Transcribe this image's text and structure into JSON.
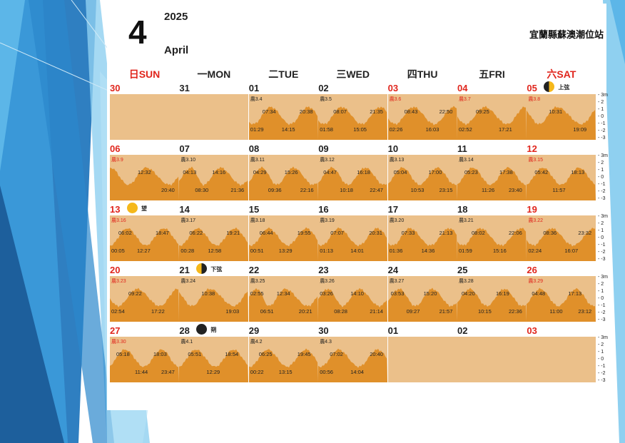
{
  "header": {
    "month_num": "4",
    "year": "2025",
    "month_name": "April",
    "station": "宜蘭縣蘇澳潮位站"
  },
  "weekdays": [
    {
      "label": "日SUN",
      "red": true
    },
    {
      "label": "一MON",
      "red": false
    },
    {
      "label": "二TUE",
      "red": false
    },
    {
      "label": "三WED",
      "red": false
    },
    {
      "label": "四THU",
      "red": false
    },
    {
      "label": "五FRI",
      "red": false
    },
    {
      "label": "六SAT",
      "red": true
    }
  ],
  "scale_labels": [
    "3m",
    "2",
    "1",
    "0",
    "-1",
    "-2",
    "-3"
  ],
  "colors": {
    "chart_bg": "#ebc08a",
    "tide_fill": "#e0902a",
    "holiday": "#e0261d"
  },
  "weeks": [
    [
      {
        "day": "30",
        "red": true,
        "lunar": "",
        "highs": [],
        "lows": [],
        "filled": true,
        "empty": true
      },
      {
        "day": "31",
        "red": false,
        "lunar": "",
        "highs": [],
        "lows": [],
        "filled": true,
        "empty": true
      },
      {
        "day": "01",
        "red": false,
        "lunar": "農3.4",
        "highs": [
          "07:34",
          "20:38"
        ],
        "lows": [
          "01:29",
          "14:15"
        ]
      },
      {
        "day": "02",
        "red": false,
        "lunar": "農3.5",
        "highs": [
          "08:07",
          "21:35"
        ],
        "lows": [
          "01:58",
          "15:05"
        ]
      },
      {
        "day": "03",
        "red": true,
        "lunar": "農3.6",
        "lunar_red": true,
        "highs": [
          "08:43",
          "22:50"
        ],
        "lows": [
          "02:26",
          "16:03"
        ]
      },
      {
        "day": "04",
        "red": true,
        "lunar": "農3.7",
        "lunar_red": true,
        "highs": [
          "09:25"
        ],
        "lows": [
          "02:52",
          "17:21"
        ]
      },
      {
        "day": "05",
        "red": true,
        "lunar": "農3.8",
        "lunar_red": true,
        "highs": [
          "10:31"
        ],
        "lows": [
          "19:09"
        ],
        "moon": "first",
        "phase": "上弦"
      }
    ],
    [
      {
        "day": "06",
        "red": true,
        "lunar": "農3.9",
        "lunar_red": true,
        "highs": [
          "12:32"
        ],
        "lows": [
          "20:40"
        ]
      },
      {
        "day": "07",
        "red": false,
        "lunar": "農3.10",
        "highs": [
          "04:13",
          "14:16"
        ],
        "lows": [
          "08:30",
          "21:36"
        ]
      },
      {
        "day": "08",
        "red": false,
        "lunar": "農3.11",
        "highs": [
          "04:29",
          "15:26"
        ],
        "lows": [
          "09:36",
          "22:16"
        ]
      },
      {
        "day": "09",
        "red": false,
        "lunar": "農3.12",
        "highs": [
          "04:47",
          "16:18"
        ],
        "lows": [
          "10:18",
          "22:47"
        ]
      },
      {
        "day": "10",
        "red": false,
        "lunar": "農3.13",
        "highs": [
          "05:04",
          "17:00"
        ],
        "lows": [
          "10:53",
          "23:15"
        ]
      },
      {
        "day": "11",
        "red": false,
        "lunar": "農3.14",
        "highs": [
          "05:23",
          "17:38"
        ],
        "lows": [
          "11:26",
          "23:40"
        ]
      },
      {
        "day": "12",
        "red": true,
        "lunar": "農3.15",
        "lunar_red": true,
        "highs": [
          "05:42",
          "18:13"
        ],
        "lows": [
          "11:57"
        ]
      }
    ],
    [
      {
        "day": "13",
        "red": true,
        "lunar": "農3.16",
        "lunar_red": true,
        "highs": [
          "06:02",
          "18:47"
        ],
        "lows": [
          "00:05",
          "12:27"
        ],
        "moon": "full",
        "phase": "望"
      },
      {
        "day": "14",
        "red": false,
        "lunar": "農3.17",
        "highs": [
          "06:22",
          "19:21"
        ],
        "lows": [
          "00:28",
          "12:58"
        ]
      },
      {
        "day": "15",
        "red": false,
        "lunar": "農3.18",
        "highs": [
          "06:44",
          "19:55"
        ],
        "lows": [
          "00:51",
          "13:29"
        ]
      },
      {
        "day": "16",
        "red": false,
        "lunar": "農3.19",
        "highs": [
          "07:07",
          "20:31"
        ],
        "lows": [
          "01:13",
          "14:01"
        ]
      },
      {
        "day": "17",
        "red": false,
        "lunar": "農3.20",
        "highs": [
          "07:33",
          "21:13"
        ],
        "lows": [
          "01:36",
          "14:36"
        ]
      },
      {
        "day": "18",
        "red": false,
        "lunar": "農3.21",
        "highs": [
          "08:02",
          "22:06"
        ],
        "lows": [
          "01:59",
          "15:16"
        ]
      },
      {
        "day": "19",
        "red": true,
        "lunar": "農3.22",
        "lunar_red": true,
        "highs": [
          "08:36",
          "23:32"
        ],
        "lows": [
          "02:24",
          "16:07"
        ]
      }
    ],
    [
      {
        "day": "20",
        "red": true,
        "lunar": "農3.23",
        "lunar_red": true,
        "highs": [
          "09:22"
        ],
        "lows": [
          "02:54",
          "17:22"
        ]
      },
      {
        "day": "21",
        "red": false,
        "lunar": "農3.24",
        "highs": [
          "10:38"
        ],
        "lows": [
          "19:03"
        ],
        "moon": "last",
        "phase": "下弦"
      },
      {
        "day": "22",
        "red": false,
        "lunar": "農3.25",
        "highs": [
          "02:55",
          "12:34"
        ],
        "lows": [
          "06:51",
          "20:21"
        ]
      },
      {
        "day": "23",
        "red": false,
        "lunar": "農3.26",
        "highs": [
          "03:26",
          "14:10"
        ],
        "lows": [
          "08:28",
          "21:14"
        ]
      },
      {
        "day": "24",
        "red": false,
        "lunar": "農3.27",
        "highs": [
          "03:53",
          "15:20"
        ],
        "lows": [
          "09:27",
          "21:57"
        ]
      },
      {
        "day": "25",
        "red": false,
        "lunar": "農3.28",
        "highs": [
          "04:20",
          "16:19"
        ],
        "lows": [
          "10:15",
          "22:36"
        ]
      },
      {
        "day": "26",
        "red": true,
        "lunar": "農3.29",
        "lunar_red": true,
        "highs": [
          "04:48",
          "17:13"
        ],
        "lows": [
          "11:00",
          "23:12"
        ]
      }
    ],
    [
      {
        "day": "27",
        "red": true,
        "lunar": "農3.30",
        "lunar_red": true,
        "highs": [
          "05:18",
          "18:03"
        ],
        "lows": [
          "11:44",
          "23:47"
        ]
      },
      {
        "day": "28",
        "red": false,
        "lunar": "農4.1",
        "highs": [
          "05:51",
          "18:54"
        ],
        "lows": [
          "12:29"
        ],
        "moon": "new",
        "phase": "朔"
      },
      {
        "day": "29",
        "red": false,
        "lunar": "農4.2",
        "highs": [
          "06:25",
          "19:45"
        ],
        "lows": [
          "00:22",
          "13:15"
        ]
      },
      {
        "day": "30",
        "red": false,
        "lunar": "農4.3",
        "highs": [
          "07:02",
          "20:40"
        ],
        "lows": [
          "00:56",
          "14:04"
        ]
      },
      {
        "day": "01",
        "red": false,
        "lunar": "",
        "highs": [],
        "lows": [],
        "empty": true
      },
      {
        "day": "02",
        "red": false,
        "lunar": "",
        "highs": [],
        "lows": [],
        "empty": true
      },
      {
        "day": "03",
        "red": true,
        "lunar": "",
        "highs": [],
        "lows": [],
        "empty": true
      }
    ]
  ]
}
